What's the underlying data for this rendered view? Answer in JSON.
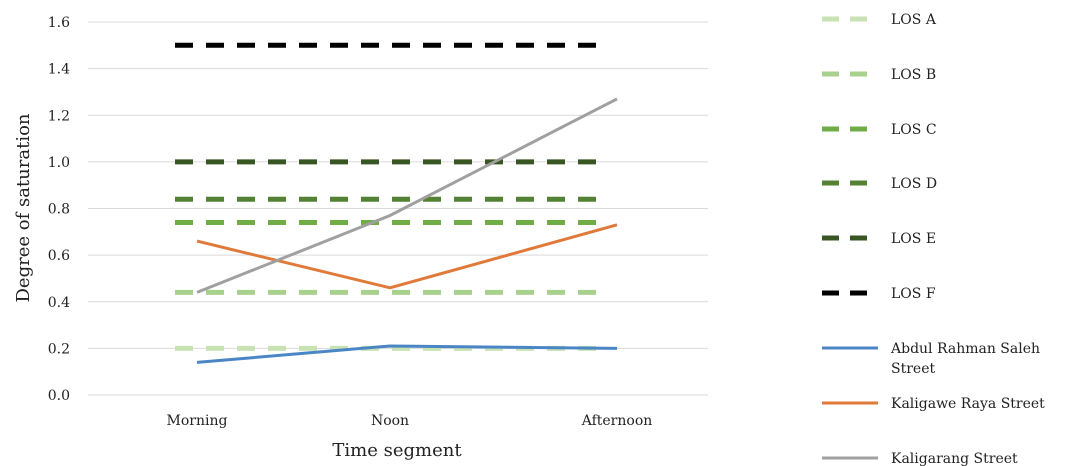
{
  "chart_data": {
    "type": "line",
    "title": "",
    "xlabel": "Time segment",
    "ylabel": "Degree of  saturation",
    "categories": [
      "Morning",
      "Noon",
      "Afternoon"
    ],
    "ylim": [
      0,
      1.6
    ],
    "yticks": [
      "0.0",
      "0.2",
      "0.4",
      "0.6",
      "0.8",
      "1.0",
      "1.2",
      "1.4",
      "1.6"
    ],
    "grid": true,
    "legend_position": "right",
    "series": [
      {
        "name": "LOS A",
        "values": [
          0.2,
          0.2,
          0.2
        ],
        "color": "#c9e2b3",
        "dashed": true
      },
      {
        "name": "LOS B",
        "values": [
          0.44,
          0.44,
          0.44
        ],
        "color": "#a9d18e",
        "dashed": true
      },
      {
        "name": "LOS C",
        "values": [
          0.74,
          0.74,
          0.74
        ],
        "color": "#70ad47",
        "dashed": true
      },
      {
        "name": "LOS D",
        "values": [
          0.84,
          0.84,
          0.84
        ],
        "color": "#548235",
        "dashed": true
      },
      {
        "name": "LOS E",
        "values": [
          1.0,
          1.0,
          1.0
        ],
        "color": "#375623",
        "dashed": true
      },
      {
        "name": "LOS F",
        "values": [
          1.5,
          1.5,
          1.5
        ],
        "color": "#000000",
        "dashed": true
      },
      {
        "name": "Abdul Rahman Saleh Street",
        "values": [
          0.14,
          0.21,
          0.2
        ],
        "color": "#4a86c5",
        "dashed": false
      },
      {
        "name": "Kaligawe Raya Street",
        "values": [
          0.66,
          0.46,
          0.73
        ],
        "color": "#e07a3a",
        "dashed": false
      },
      {
        "name": "Kaligarang Street",
        "values": [
          0.44,
          0.77,
          1.27
        ],
        "color": "#a0a0a0",
        "dashed": false
      }
    ]
  }
}
